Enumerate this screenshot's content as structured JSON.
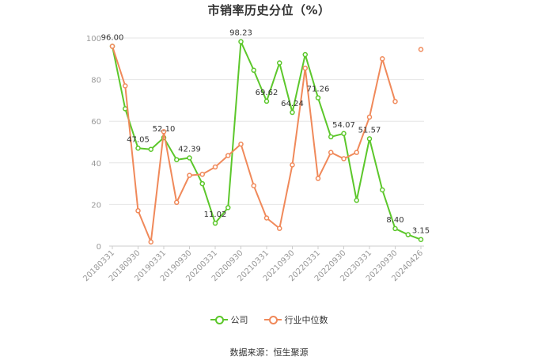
{
  "title": "市销率历史分位（%）",
  "source": "数据来源：恒生聚源",
  "colors": {
    "company": "#5cc72b",
    "industry": "#f0895a",
    "grid": "#e6e6e6",
    "axis": "#999999",
    "tick": "#999999"
  },
  "legend": [
    {
      "label": "公司",
      "color": "#5cc72b"
    },
    {
      "label": "行业中位数",
      "color": "#f0895a"
    }
  ],
  "chart_data": {
    "type": "line",
    "title": "市销率历史分位（%）",
    "ylim": [
      0,
      100
    ],
    "y_ticks": [
      0,
      20,
      40,
      60,
      80,
      100
    ],
    "grid": true,
    "legend_position": "bottom",
    "x_tick_labels": [
      "20180331",
      "20180930",
      "20190331",
      "20190930",
      "20200331",
      "20200930",
      "20210331",
      "20210930",
      "20220331",
      "20220930",
      "20230331",
      "20230930",
      "20240426"
    ],
    "series": [
      {
        "name": "公司",
        "color": "#5cc72b",
        "values": [
          96.0,
          66,
          47.05,
          46.5,
          52.1,
          41.5,
          42.39,
          30,
          11.02,
          18.5,
          98.23,
          84.5,
          69.62,
          88,
          64.24,
          92,
          71.26,
          52.5,
          54.07,
          22,
          51.57,
          27,
          8.4,
          5.5,
          3.15
        ],
        "data_labels": [
          {
            "index": 0,
            "text": "96.00"
          },
          {
            "index": 2,
            "text": "47.05"
          },
          {
            "index": 4,
            "text": "52.10"
          },
          {
            "index": 6,
            "text": "42.39"
          },
          {
            "index": 8,
            "text": "11.02"
          },
          {
            "index": 10,
            "text": "98.23"
          },
          {
            "index": 12,
            "text": "69.62"
          },
          {
            "index": 14,
            "text": "64.24"
          },
          {
            "index": 16,
            "text": "71.26"
          },
          {
            "index": 18,
            "text": "54.07"
          },
          {
            "index": 20,
            "text": "51.57"
          },
          {
            "index": 22,
            "text": "8.40"
          },
          {
            "index": 24,
            "text": "3.15"
          }
        ]
      },
      {
        "name": "行业中位数",
        "color": "#f0895a",
        "values": [
          96,
          77,
          17,
          2,
          55,
          21,
          34,
          34.5,
          38,
          43.5,
          49,
          29,
          13.5,
          8.5,
          39,
          85.5,
          32.5,
          45,
          42,
          45,
          62,
          90,
          69.5,
          null,
          94.5
        ]
      }
    ]
  }
}
